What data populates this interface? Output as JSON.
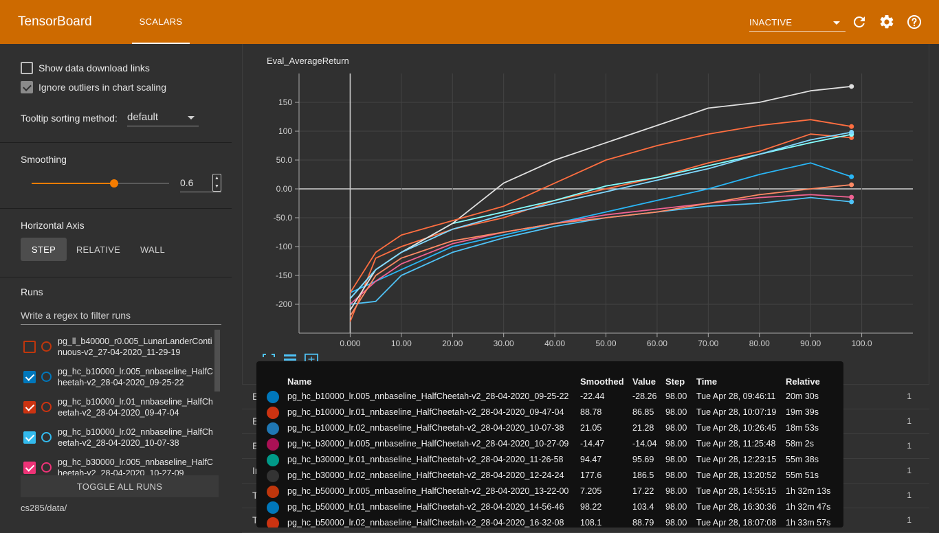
{
  "header": {
    "brand": "TensorBoard",
    "tab": "SCALARS",
    "status_select": "INACTIVE",
    "icons": [
      "refresh-icon",
      "settings-icon",
      "help-icon"
    ]
  },
  "sidebar": {
    "show_download_links": "Show data download links",
    "ignore_outliers": "Ignore outliers in chart scaling",
    "tooltip_label": "Tooltip sorting method:",
    "tooltip_value": "default",
    "smoothing_label": "Smoothing",
    "smoothing_value": "0.6",
    "smoothing_fraction": 0.6,
    "axis_label": "Horizontal Axis",
    "axis_options": [
      "STEP",
      "RELATIVE",
      "WALL"
    ],
    "runs_label": "Runs",
    "filter_placeholder": "Write a regex to filter runs",
    "runs": [
      {
        "name": "pg_ll_b40000_r0.005_LunarLanderContinuous-v2_27-04-2020_11-29-19",
        "checked": false,
        "color": "#bf360c"
      },
      {
        "name": "pg_hc_b10000_lr.005_nnbaseline_HalfCheetah-v2_28-04-2020_09-25-22",
        "checked": true,
        "color": "#0077bb"
      },
      {
        "name": "pg_hc_b10000_lr.01_nnbaseline_HalfCheetah-v2_28-04-2020_09-47-04",
        "checked": true,
        "color": "#cc3311"
      },
      {
        "name": "pg_hc_b10000_lr.02_nnbaseline_HalfCheetah-v2_28-04-2020_10-07-38",
        "checked": true,
        "color": "#33bbee"
      },
      {
        "name": "pg_hc_b30000_lr.005_nnbaseline_HalfCheetah-v2_28-04-2020_10-27-09",
        "checked": true,
        "color": "#ee3377"
      }
    ],
    "toggle_all": "TOGGLE ALL RUNS",
    "logdir": "cs285/data/"
  },
  "card": {
    "title": "Eval_AverageReturn"
  },
  "chart_data": {
    "type": "line",
    "title": "Eval_AverageReturn",
    "xlabel": "",
    "ylabel": "",
    "x_ticks": [
      "0.000",
      "10.00",
      "20.00",
      "30.00",
      "40.00",
      "50.00",
      "60.00",
      "70.00",
      "80.00",
      "90.00",
      "100.0"
    ],
    "y_ticks": [
      "150",
      "100",
      "50.0",
      "0.00",
      "-50.0",
      "-100",
      "-150",
      "-200"
    ],
    "xlim": [
      -10,
      110
    ],
    "ylim": [
      -250,
      200
    ],
    "grid": true,
    "series": [
      {
        "name": "pg_hc_b10000_lr.005_nnbaseline_HalfCheetah-v2_28-04-2020_09-25-22",
        "color": "#4fc3f7",
        "x": [
          0,
          5,
          10,
          20,
          30,
          40,
          50,
          60,
          70,
          80,
          90,
          98
        ],
        "y": [
          -200,
          -195,
          -150,
          -110,
          -85,
          -65,
          -50,
          -40,
          -30,
          -25,
          -15,
          -22.44
        ]
      },
      {
        "name": "pg_hc_b10000_lr.01_nnbaseline_HalfCheetah-v2_28-04-2020_09-47-04",
        "color": "#ff7043",
        "x": [
          0,
          5,
          10,
          20,
          30,
          40,
          50,
          60,
          70,
          80,
          90,
          98
        ],
        "y": [
          -230,
          -120,
          -100,
          -70,
          -50,
          -20,
          0,
          20,
          45,
          65,
          95,
          88.78
        ]
      },
      {
        "name": "pg_hc_b10000_lr.02_nnbaseline_HalfCheetah-v2_28-04-2020_10-07-38",
        "color": "#29b6f6",
        "x": [
          0,
          5,
          10,
          20,
          30,
          40,
          50,
          60,
          70,
          80,
          90,
          98
        ],
        "y": [
          -180,
          -160,
          -140,
          -100,
          -80,
          -60,
          -40,
          -20,
          0,
          25,
          45,
          21.05
        ]
      },
      {
        "name": "pg_hc_b30000_lr.005_nnbaseline_HalfCheetah-v2_28-04-2020_10-27-09",
        "color": "#f06292",
        "x": [
          0,
          5,
          10,
          20,
          30,
          40,
          50,
          60,
          70,
          80,
          90,
          98
        ],
        "y": [
          -200,
          -160,
          -130,
          -95,
          -75,
          -60,
          -45,
          -35,
          -25,
          -15,
          -10,
          -14.47
        ]
      },
      {
        "name": "pg_hc_b30000_lr.01_nnbaseline_HalfCheetah-v2_28-04-2020_11-26-58",
        "color": "#84ffff",
        "x": [
          0,
          5,
          10,
          20,
          30,
          40,
          50,
          60,
          70,
          80,
          90,
          98
        ],
        "y": [
          -190,
          -140,
          -110,
          -60,
          -40,
          -20,
          5,
          20,
          40,
          60,
          80,
          94.47
        ]
      },
      {
        "name": "pg_hc_b30000_lr.02_nnbaseline_HalfCheetah-v2_28-04-2020_12-24-24",
        "color": "#e0e0e0",
        "x": [
          0,
          5,
          10,
          20,
          30,
          40,
          50,
          60,
          70,
          80,
          90,
          98
        ],
        "y": [
          -210,
          -140,
          -110,
          -60,
          10,
          50,
          80,
          110,
          140,
          150,
          170,
          177.6
        ]
      },
      {
        "name": "pg_hc_b50000_lr.005_nnbaseline_HalfCheetah-v2_28-04-2020_13-22-00",
        "color": "#ff8a65",
        "x": [
          0,
          5,
          10,
          20,
          30,
          40,
          50,
          60,
          70,
          80,
          90,
          98
        ],
        "y": [
          -220,
          -150,
          -120,
          -90,
          -75,
          -60,
          -50,
          -40,
          -25,
          -10,
          0,
          7.205
        ]
      },
      {
        "name": "pg_hc_b50000_lr.01_nnbaseline_HalfCheetah-v2_28-04-2020_14-56-46",
        "color": "#80d8ff",
        "x": [
          0,
          5,
          10,
          20,
          30,
          40,
          50,
          60,
          70,
          80,
          90,
          98
        ],
        "y": [
          -190,
          -140,
          -110,
          -70,
          -45,
          -25,
          -5,
          15,
          35,
          60,
          85,
          98.22
        ]
      },
      {
        "name": "pg_hc_b50000_lr.02_nnbaseline_HalfCheetah-v2_28-04-2020_16-32-08",
        "color": "#ff6e40",
        "x": [
          0,
          5,
          10,
          20,
          30,
          40,
          50,
          60,
          70,
          80,
          90,
          98
        ],
        "y": [
          -180,
          -110,
          -80,
          -55,
          -30,
          10,
          50,
          75,
          95,
          110,
          120,
          108.1
        ]
      }
    ]
  },
  "groups": [
    {
      "name": "Eval_M",
      "count": "1"
    },
    {
      "name": "Eval_MinReturn",
      "count": "1"
    },
    {
      "name": "Eval_St",
      "count": "1"
    },
    {
      "name": "Initial_DataCollection_AverageReturn",
      "count": "1"
    },
    {
      "name": "Time_Since_Start",
      "count": "1"
    },
    {
      "name": "Train_AverageReturn",
      "count": "1"
    }
  ],
  "tooltip": {
    "headers": [
      "Name",
      "Smoothed",
      "Value",
      "Step",
      "Time",
      "Relative"
    ],
    "rows": [
      {
        "color": "#0077bb",
        "name": "pg_hc_b10000_lr.005_nnbaseline_HalfCheetah-v2_28-04-2020_09-25-22",
        "smoothed": "-22.44",
        "value": "-28.26",
        "step": "98.00",
        "time": "Tue Apr 28, 09:46:11",
        "relative": "20m 30s"
      },
      {
        "color": "#cc3311",
        "name": "pg_hc_b10000_lr.01_nnbaseline_HalfCheetah-v2_28-04-2020_09-47-04",
        "smoothed": "88.78",
        "value": "86.85",
        "step": "98.00",
        "time": "Tue Apr 28, 10:07:19",
        "relative": "19m 39s"
      },
      {
        "color": "#1f77b4",
        "name": "pg_hc_b10000_lr.02_nnbaseline_HalfCheetah-v2_28-04-2020_10-07-38",
        "smoothed": "21.05",
        "value": "21.28",
        "step": "98.00",
        "time": "Tue Apr 28, 10:26:45",
        "relative": "18m 53s"
      },
      {
        "color": "#aa1155",
        "name": "pg_hc_b30000_lr.005_nnbaseline_HalfCheetah-v2_28-04-2020_10-27-09",
        "smoothed": "-14.47",
        "value": "-14.04",
        "step": "98.00",
        "time": "Tue Apr 28, 11:25:48",
        "relative": "58m 2s"
      },
      {
        "color": "#009988",
        "name": "pg_hc_b30000_lr.01_nnbaseline_HalfCheetah-v2_28-04-2020_11-26-58",
        "smoothed": "94.47",
        "value": "95.69",
        "step": "98.00",
        "time": "Tue Apr 28, 12:23:15",
        "relative": "55m 38s"
      },
      {
        "color": "#333333",
        "name": "pg_hc_b30000_lr.02_nnbaseline_HalfCheetah-v2_28-04-2020_12-24-24",
        "smoothed": "177.6",
        "value": "186.5",
        "step": "98.00",
        "time": "Tue Apr 28, 13:20:52",
        "relative": "55m 51s"
      },
      {
        "color": "#bf360c",
        "name": "pg_hc_b50000_lr.005_nnbaseline_HalfCheetah-v2_28-04-2020_13-22-00",
        "smoothed": "7.205",
        "value": "17.22",
        "step": "98.00",
        "time": "Tue Apr 28, 14:55:15",
        "relative": "1h 32m 13s"
      },
      {
        "color": "#0077bb",
        "name": "pg_hc_b50000_lr.01_nnbaseline_HalfCheetah-v2_28-04-2020_14-56-46",
        "smoothed": "98.22",
        "value": "103.4",
        "step": "98.00",
        "time": "Tue Apr 28, 16:30:36",
        "relative": "1h 32m 47s"
      },
      {
        "color": "#cc3311",
        "name": "pg_hc_b50000_lr.02_nnbaseline_HalfCheetah-v2_28-04-2020_16-32-08",
        "smoothed": "108.1",
        "value": "88.79",
        "step": "98.00",
        "time": "Tue Apr 28, 18:07:08",
        "relative": "1h 33m 57s"
      }
    ]
  }
}
